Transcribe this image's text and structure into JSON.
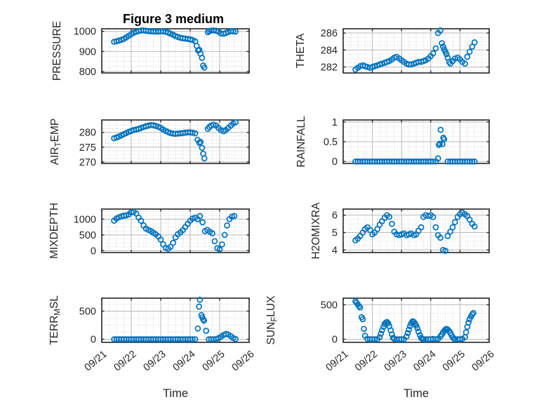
{
  "figure": {
    "title": "Figure 3 medium",
    "background": "#ffffff",
    "marker_color": "#0072BD",
    "axis_color": "#262626",
    "major_grid_color": "#b8b8b8",
    "minor_grid_color": "#cccccc"
  },
  "xaxis": {
    "label": "Time",
    "lim": [
      0,
      5
    ],
    "tick_values": [
      0,
      1,
      2,
      3,
      4,
      5
    ],
    "tick_labels": [
      "09/21",
      "09/22",
      "09/23",
      "09/24",
      "09/25",
      "09/26"
    ],
    "minor_step": 0.25
  },
  "chart_data": [
    {
      "name": "PRESSURE",
      "type": "scatter",
      "row": 0,
      "col": 0,
      "ylabel": "PRESSURE",
      "ylabel_parts": [
        {
          "t": "PRESSURE"
        }
      ],
      "yticks": [
        800,
        900,
        1000
      ],
      "ylim": [
        793,
        1013
      ],
      "y_minor_step": 25,
      "x": [
        0.42,
        0.5,
        0.58,
        0.67,
        0.75,
        0.83,
        0.92,
        1.0,
        1.08,
        1.17,
        1.25,
        1.33,
        1.42,
        1.5,
        1.58,
        1.67,
        1.75,
        1.83,
        1.92,
        2.0,
        2.08,
        2.17,
        2.25,
        2.33,
        2.42,
        2.5,
        2.58,
        2.67,
        2.75,
        2.83,
        2.92,
        3.0,
        3.08,
        3.17,
        3.22,
        3.27,
        3.31,
        3.35,
        3.4,
        3.44,
        3.48,
        3.6,
        3.65,
        3.71,
        3.79,
        3.88,
        3.96,
        4.04,
        4.13,
        4.21,
        4.29,
        4.38,
        4.46,
        4.54
      ],
      "y": [
        948,
        951,
        954,
        958,
        963,
        970,
        978,
        986,
        993,
        998,
        1002,
        1004,
        1005,
        1003,
        1001,
        1000,
        1000,
        999,
        999,
        1000,
        1000,
        998,
        994,
        989,
        983,
        977,
        972,
        968,
        966,
        964,
        962,
        960,
        957,
        950,
        928,
        905,
        908,
        890,
        868,
        830,
        820,
        996,
        1001,
        1004,
        1005,
        1003,
        999,
        990,
        988,
        992,
        997,
        1001,
        1000,
        999
      ]
    },
    {
      "name": "THETA",
      "type": "scatter",
      "row": 0,
      "col": 1,
      "ylabel": "THETA",
      "ylabel_parts": [
        {
          "t": "THETA"
        }
      ],
      "yticks": [
        282,
        284,
        286
      ],
      "ylim": [
        281.3,
        286.5
      ],
      "y_minor_step": 0.5,
      "x": [
        0.42,
        0.5,
        0.58,
        0.67,
        0.75,
        0.83,
        0.92,
        1.0,
        1.08,
        1.17,
        1.25,
        1.33,
        1.42,
        1.5,
        1.58,
        1.67,
        1.75,
        1.83,
        1.92,
        2.0,
        2.08,
        2.17,
        2.25,
        2.33,
        2.42,
        2.5,
        2.58,
        2.67,
        2.75,
        2.83,
        2.92,
        3.0,
        3.08,
        3.17,
        3.25,
        3.33,
        3.38,
        3.42,
        3.46,
        3.5,
        3.54,
        3.58,
        3.63,
        3.67,
        3.75,
        3.83,
        3.92,
        4.0,
        4.08,
        4.17,
        4.25,
        4.33,
        4.42,
        4.5
      ],
      "y": [
        281.7,
        281.9,
        282.1,
        282.2,
        282.1,
        282.0,
        281.9,
        282.0,
        282.1,
        282.2,
        282.3,
        282.4,
        282.5,
        282.6,
        282.7,
        282.9,
        283.1,
        283.2,
        283.0,
        282.8,
        282.6,
        282.4,
        282.3,
        282.3,
        282.4,
        282.5,
        282.6,
        282.6,
        282.7,
        282.8,
        283.0,
        283.3,
        283.6,
        284.2,
        286.0,
        286.3,
        284.8,
        284.4,
        284.1,
        283.8,
        283.5,
        283.1,
        282.6,
        282.4,
        282.7,
        283.0,
        283.1,
        282.9,
        282.6,
        282.4,
        283.2,
        283.8,
        284.4,
        284.9
      ]
    },
    {
      "name": "AIR_TEMP",
      "type": "scatter",
      "row": 1,
      "col": 0,
      "ylabel": "AIR_TEMP",
      "ylabel_parts": [
        {
          "t": "AIR"
        },
        {
          "s": "T"
        },
        {
          "t": "EMP"
        }
      ],
      "yticks": [
        270,
        275,
        280
      ],
      "ylim": [
        269.5,
        284.2
      ],
      "y_minor_step": 1.25,
      "x": [
        0.42,
        0.5,
        0.58,
        0.67,
        0.75,
        0.83,
        0.92,
        1.0,
        1.08,
        1.17,
        1.25,
        1.33,
        1.42,
        1.5,
        1.58,
        1.67,
        1.75,
        1.83,
        1.92,
        2.0,
        2.08,
        2.17,
        2.25,
        2.33,
        2.42,
        2.5,
        2.58,
        2.67,
        2.75,
        2.83,
        2.92,
        3.0,
        3.08,
        3.17,
        3.25,
        3.31,
        3.35,
        3.4,
        3.44,
        3.48,
        3.6,
        3.65,
        3.71,
        3.79,
        3.88,
        3.96,
        4.04,
        4.13,
        4.21,
        4.29,
        4.38,
        4.46,
        4.54
      ],
      "y": [
        278.0,
        278.3,
        278.6,
        279.0,
        279.4,
        279.8,
        280.2,
        280.5,
        280.8,
        281.0,
        281.2,
        281.5,
        281.8,
        282.1,
        282.3,
        282.5,
        282.4,
        282.2,
        281.9,
        281.5,
        281.0,
        280.5,
        280.1,
        279.8,
        279.6,
        279.5,
        279.6,
        279.7,
        279.8,
        279.9,
        280.0,
        280.0,
        279.9,
        279.7,
        277.5,
        276.5,
        276.8,
        274.8,
        272.8,
        271.2,
        281.2,
        281.8,
        282.3,
        282.6,
        282.3,
        281.5,
        280.8,
        280.4,
        280.8,
        281.5,
        282.3,
        283.0,
        283.4
      ]
    },
    {
      "name": "RAINFALL",
      "type": "scatter",
      "row": 1,
      "col": 1,
      "ylabel": "RAINFALL",
      "ylabel_parts": [
        {
          "t": "RAINFALL"
        }
      ],
      "yticks": [
        0,
        0.5,
        1
      ],
      "ylim": [
        -0.05,
        1.05
      ],
      "y_minor_step": 0.125,
      "x": [
        0.42,
        0.5,
        0.58,
        0.67,
        0.75,
        0.83,
        0.92,
        1.0,
        1.08,
        1.17,
        1.25,
        1.33,
        1.42,
        1.5,
        1.58,
        1.67,
        1.75,
        1.83,
        1.92,
        2.0,
        2.08,
        2.17,
        2.25,
        2.33,
        2.42,
        2.5,
        2.58,
        2.67,
        2.75,
        2.83,
        2.92,
        3.0,
        3.08,
        3.17,
        3.25,
        3.28,
        3.31,
        3.34,
        3.4,
        3.43,
        3.46,
        3.58,
        3.67,
        3.75,
        3.83,
        3.92,
        4.0,
        4.08,
        4.17,
        4.25,
        4.33,
        4.42,
        4.5
      ],
      "y": [
        0,
        0,
        0,
        0,
        0,
        0,
        0,
        0,
        0,
        0,
        0,
        0,
        0,
        0,
        0,
        0,
        0,
        0,
        0,
        0,
        0,
        0,
        0,
        0,
        0,
        0,
        0,
        0,
        0,
        0,
        0,
        0,
        0,
        0,
        0.08,
        0.42,
        0.45,
        0.8,
        0.44,
        0.6,
        0.56,
        0,
        0,
        0,
        0,
        0,
        0,
        0,
        0,
        0,
        0,
        0,
        0
      ]
    },
    {
      "name": "MIXDEPTH",
      "type": "scatter",
      "row": 2,
      "col": 0,
      "ylabel": "MIXDEPTH",
      "ylabel_parts": [
        {
          "t": "MIXDEPTH"
        }
      ],
      "yticks": [
        0,
        500,
        1000
      ],
      "ylim": [
        -60,
        1320
      ],
      "y_minor_step": 125,
      "x": [
        0.42,
        0.5,
        0.58,
        0.67,
        0.75,
        0.83,
        0.92,
        1.0,
        1.08,
        1.17,
        1.25,
        1.33,
        1.42,
        1.5,
        1.58,
        1.67,
        1.75,
        1.83,
        1.92,
        2.0,
        2.08,
        2.17,
        2.25,
        2.33,
        2.42,
        2.5,
        2.58,
        2.67,
        2.75,
        2.83,
        2.92,
        3.0,
        3.08,
        3.17,
        3.25,
        3.33,
        3.42,
        3.5,
        3.58,
        3.67,
        3.75,
        3.83,
        3.92,
        4.0,
        4.08,
        4.17,
        4.25,
        4.33,
        4.42,
        4.5
      ],
      "y": [
        950,
        1020,
        1060,
        1090,
        1110,
        1120,
        1150,
        1220,
        1230,
        1180,
        1050,
        950,
        800,
        700,
        660,
        620,
        570,
        520,
        450,
        350,
        200,
        90,
        60,
        120,
        250,
        420,
        520,
        580,
        650,
        750,
        850,
        950,
        1020,
        1050,
        1000,
        1100,
        900,
        620,
        660,
        600,
        550,
        300,
        80,
        40,
        200,
        500,
        800,
        1000,
        1080,
        1100
      ]
    },
    {
      "name": "H2OMIXRA",
      "type": "scatter",
      "row": 2,
      "col": 1,
      "ylabel": "H2OMIXRA",
      "ylabel_parts": [
        {
          "t": "H2OMIXRA"
        }
      ],
      "yticks": [
        4,
        5,
        6
      ],
      "ylim": [
        3.85,
        6.35
      ],
      "y_minor_step": 0.25,
      "x": [
        0.42,
        0.5,
        0.58,
        0.67,
        0.75,
        0.83,
        0.92,
        1.0,
        1.08,
        1.17,
        1.25,
        1.33,
        1.42,
        1.5,
        1.58,
        1.67,
        1.75,
        1.83,
        1.92,
        2.0,
        2.08,
        2.17,
        2.25,
        2.33,
        2.42,
        2.5,
        2.58,
        2.67,
        2.75,
        2.83,
        2.92,
        3.0,
        3.08,
        3.17,
        3.25,
        3.33,
        3.42,
        3.5,
        3.58,
        3.67,
        3.75,
        3.83,
        3.92,
        4.0,
        4.08,
        4.17,
        4.25,
        4.33,
        4.42,
        4.5
      ],
      "y": [
        4.55,
        4.65,
        4.8,
        5.0,
        5.2,
        5.3,
        5.15,
        4.9,
        5.0,
        5.2,
        5.45,
        5.65,
        5.85,
        6.0,
        5.9,
        5.5,
        5.05,
        4.9,
        4.85,
        4.9,
        4.95,
        4.85,
        4.9,
        4.95,
        4.85,
        4.9,
        5.1,
        5.3,
        5.9,
        6.0,
        5.95,
        6.0,
        5.9,
        5.3,
        4.85,
        4.7,
        4.0,
        3.95,
        4.8,
        5.05,
        5.3,
        5.6,
        5.9,
        6.05,
        6.15,
        6.05,
        5.95,
        5.75,
        5.5,
        5.35
      ]
    },
    {
      "name": "TERR_MSL",
      "type": "scatter",
      "row": 3,
      "col": 0,
      "ylabel": "TERR_MSL",
      "ylabel_parts": [
        {
          "t": "TERR"
        },
        {
          "s": "M"
        },
        {
          "t": "SL"
        }
      ],
      "yticks": [
        0,
        500
      ],
      "ylim": [
        -55,
        730
      ],
      "y_minor_step": 125,
      "x": [
        0.42,
        0.5,
        0.58,
        0.67,
        0.75,
        0.83,
        0.92,
        1.0,
        1.08,
        1.17,
        1.25,
        1.33,
        1.42,
        1.5,
        1.58,
        1.67,
        1.75,
        1.83,
        1.92,
        2.0,
        2.08,
        2.17,
        2.25,
        2.33,
        2.42,
        2.5,
        2.58,
        2.67,
        2.75,
        2.83,
        2.92,
        3.0,
        3.08,
        3.17,
        3.26,
        3.3,
        3.33,
        3.38,
        3.41,
        3.44,
        3.47,
        3.54,
        3.63,
        3.71,
        3.79,
        3.88,
        3.96,
        4.04,
        4.13,
        4.21,
        4.29,
        4.38,
        4.46,
        4.54
      ],
      "y": [
        0,
        0,
        0,
        0,
        0,
        0,
        0,
        0,
        0,
        0,
        0,
        0,
        0,
        0,
        0,
        0,
        0,
        0,
        0,
        0,
        0,
        0,
        0,
        0,
        0,
        0,
        0,
        0,
        0,
        0,
        0,
        0,
        0,
        0,
        190,
        580,
        700,
        430,
        390,
        355,
        330,
        150,
        0,
        0,
        0,
        5,
        20,
        45,
        75,
        95,
        85,
        55,
        20,
        5
      ]
    },
    {
      "name": "SUN_FLUX",
      "type": "scatter",
      "row": 3,
      "col": 1,
      "ylabel": "SUN_FLUX",
      "ylabel_parts": [
        {
          "t": "SUN"
        },
        {
          "s": "F"
        },
        {
          "t": "LUX"
        }
      ],
      "yticks": [
        0,
        500
      ],
      "ylim": [
        -45,
        595
      ],
      "y_minor_step": 125,
      "x": [
        0.42,
        0.46,
        0.5,
        0.54,
        0.58,
        0.63,
        0.67,
        0.71,
        0.75,
        0.83,
        0.92,
        1.0,
        1.08,
        1.17,
        1.25,
        1.29,
        1.33,
        1.38,
        1.42,
        1.46,
        1.5,
        1.54,
        1.58,
        1.63,
        1.67,
        1.71,
        1.75,
        1.83,
        1.92,
        2.0,
        2.08,
        2.17,
        2.21,
        2.25,
        2.29,
        2.33,
        2.38,
        2.42,
        2.46,
        2.5,
        2.54,
        2.58,
        2.63,
        2.67,
        2.71,
        2.75,
        2.83,
        2.92,
        3.0,
        3.08,
        3.17,
        3.25,
        3.33,
        3.38,
        3.42,
        3.46,
        3.5,
        3.54,
        3.58,
        3.63,
        3.67,
        3.71,
        3.75,
        3.79,
        3.83,
        3.92,
        4.0,
        4.08,
        4.17,
        4.21,
        4.25,
        4.29,
        4.33,
        4.38,
        4.42,
        4.46
      ],
      "y": [
        550,
        530,
        505,
        480,
        460,
        320,
        290,
        150,
        50,
        5,
        0,
        0,
        0,
        0,
        30,
        80,
        130,
        180,
        220,
        240,
        250,
        230,
        190,
        130,
        70,
        20,
        5,
        0,
        0,
        0,
        0,
        40,
        90,
        140,
        190,
        230,
        260,
        250,
        230,
        200,
        160,
        110,
        60,
        20,
        5,
        0,
        0,
        0,
        0,
        5,
        0,
        5,
        40,
        70,
        100,
        120,
        140,
        150,
        140,
        120,
        90,
        60,
        30,
        10,
        0,
        0,
        0,
        5,
        30,
        100,
        180,
        240,
        290,
        330,
        360,
        380
      ]
    }
  ]
}
